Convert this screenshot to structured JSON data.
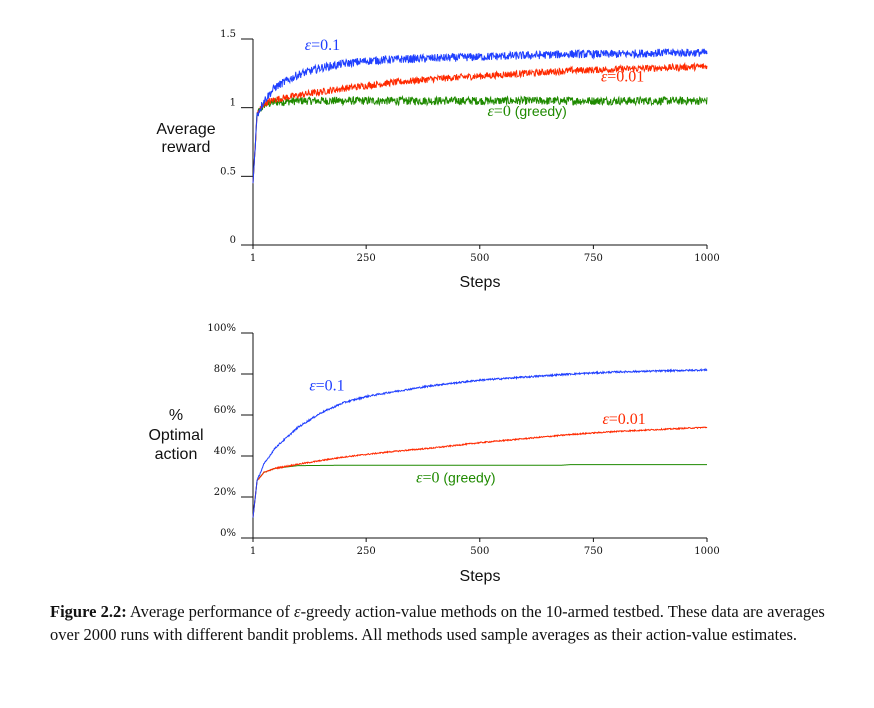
{
  "chart_data": [
    {
      "type": "line",
      "ylabel": [
        "Average",
        "reward"
      ],
      "xlabel": "Steps",
      "xlim": [
        1,
        1000
      ],
      "ylim": [
        0,
        1.5
      ],
      "xticks": [
        "1",
        "250",
        "500",
        "750",
        "1000"
      ],
      "yticks": [
        "0",
        "0.5",
        "1",
        "1.5"
      ],
      "series": [
        {
          "name": "ε = 0.1",
          "color": "#1f3fff",
          "x": [
            1,
            10,
            25,
            50,
            100,
            150,
            200,
            250,
            300,
            400,
            500,
            600,
            700,
            800,
            900,
            1000
          ],
          "y": [
            0.45,
            0.95,
            1.05,
            1.15,
            1.24,
            1.29,
            1.32,
            1.34,
            1.35,
            1.36,
            1.37,
            1.38,
            1.39,
            1.39,
            1.4,
            1.4
          ],
          "noise": 0.03
        },
        {
          "name": "ε = 0.01",
          "color": "#ff2a00",
          "x": [
            1,
            10,
            25,
            50,
            100,
            200,
            300,
            400,
            500,
            600,
            700,
            800,
            900,
            1000
          ],
          "y": [
            0.45,
            0.95,
            1.03,
            1.06,
            1.09,
            1.14,
            1.18,
            1.21,
            1.23,
            1.25,
            1.27,
            1.28,
            1.29,
            1.3
          ],
          "noise": 0.025
        },
        {
          "name": "ε = 0 (greedy)",
          "color": "#1f8a00",
          "x": [
            1,
            10,
            25,
            50,
            100,
            200,
            400,
            600,
            800,
            1000
          ],
          "y": [
            0.45,
            0.95,
            1.02,
            1.04,
            1.05,
            1.05,
            1.05,
            1.05,
            1.05,
            1.05
          ],
          "noise": 0.03
        }
      ],
      "annotations": [
        {
          "series": 0,
          "prefix": "ε",
          "eq": "=0.1",
          "suffix": "",
          "x": 115,
          "y": 1.42
        },
        {
          "series": 1,
          "prefix": "ε",
          "eq": "=0.01",
          "suffix": "",
          "x": 862,
          "y": 1.19
        },
        {
          "series": 2,
          "prefix": "ε",
          "eq": "=0",
          "suffix": " (greedy)",
          "x": 517,
          "y": 0.94
        }
      ]
    },
    {
      "type": "line",
      "ylabel": [
        "%",
        "Optimal",
        "action"
      ],
      "xlabel": "Steps",
      "xlim": [
        1,
        1000
      ],
      "ylim": [
        0,
        100
      ],
      "xticks": [
        "1",
        "250",
        "500",
        "750",
        "1000"
      ],
      "yticks": [
        "0%",
        "20%",
        "40%",
        "60%",
        "80%",
        "100%"
      ],
      "series": [
        {
          "name": "ε = 0.1",
          "color": "#1f3fff",
          "x": [
            1,
            10,
            25,
            50,
            100,
            150,
            200,
            250,
            300,
            400,
            500,
            600,
            700,
            800,
            900,
            1000
          ],
          "y": [
            10,
            28,
            36,
            44,
            54,
            61,
            66,
            69,
            71,
            74.5,
            77,
            78.5,
            80,
            81,
            81.5,
            82
          ],
          "noise": 0.4
        },
        {
          "name": "ε = 0.01",
          "color": "#ff2a00",
          "x": [
            1,
            10,
            25,
            50,
            100,
            200,
            300,
            400,
            500,
            600,
            700,
            800,
            900,
            1000
          ],
          "y": [
            10,
            28,
            32,
            34,
            36,
            39.5,
            42,
            44,
            46.5,
            48.5,
            50.5,
            52,
            53,
            54
          ],
          "noise": 0.3
        },
        {
          "name": "ε = 0 (greedy)",
          "color": "#1f8a00",
          "x": [
            1,
            10,
            25,
            50,
            100,
            200,
            400,
            600,
            680,
            700,
            800,
            1000
          ],
          "y": [
            10,
            28,
            32,
            34,
            35.3,
            35.5,
            35.5,
            35.5,
            35.5,
            35.8,
            35.8,
            35.8
          ],
          "noise": 0
        }
      ],
      "annotations": [
        {
          "series": 0,
          "prefix": "ε",
          "eq": "=0.1",
          "suffix": "",
          "x": 125,
          "y": 72
        },
        {
          "series": 1,
          "prefix": "ε",
          "eq": "=0.01",
          "suffix": "",
          "x": 770,
          "y": 55.5
        },
        {
          "series": 2,
          "prefix": "ε",
          "eq": "=0",
          "suffix": " (greedy)",
          "x": 360,
          "y": 27
        }
      ]
    }
  ],
  "caption": {
    "label": "Figure 2.2:",
    "text_before": " Average performance of ",
    "epsilon": "ε",
    "text_after": "-greedy action-value methods on the 10-armed testbed. These data are averages over 2000 runs with different bandit problems. All methods used sample averages as their action-value estimates."
  }
}
